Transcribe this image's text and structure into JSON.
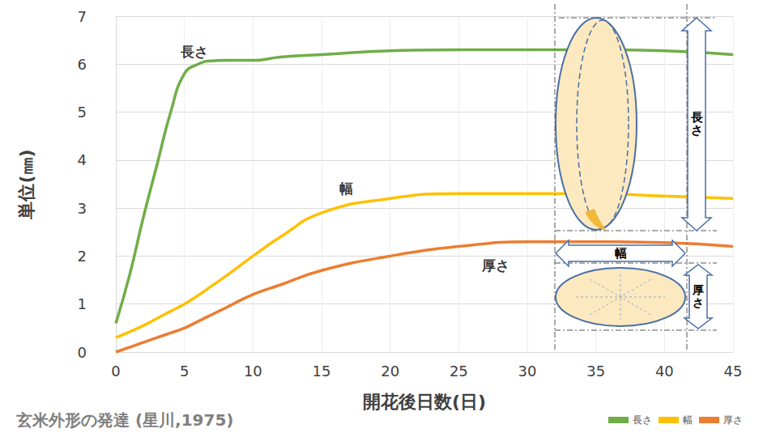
{
  "chart_data": {
    "type": "line",
    "title": "玄米外形の発達 (星川,1975)",
    "x_label": "開花後日数(日)",
    "y_label": "単位(㎜)",
    "x": [
      0,
      1,
      2,
      3,
      4,
      5,
      6,
      7,
      8,
      10,
      12,
      15,
      20,
      25,
      30,
      35,
      40,
      45
    ],
    "series": [
      {
        "name": "長さ",
        "color": "#70ad47",
        "values": [
          0.6,
          1.6,
          2.8,
          3.9,
          5.0,
          5.8,
          6.0,
          6.07,
          6.08,
          6.08,
          6.15,
          6.2,
          6.28,
          6.3,
          6.3,
          6.3,
          6.28,
          6.2
        ]
      },
      {
        "name": "幅",
        "color": "#ffc000",
        "values": [
          0.3,
          0.42,
          0.55,
          0.7,
          0.85,
          1.0,
          1.18,
          1.38,
          1.58,
          2.0,
          2.4,
          2.9,
          3.2,
          3.3,
          3.3,
          3.3,
          3.25,
          3.2
        ]
      },
      {
        "name": "厚さ",
        "color": "#ed7d31",
        "values": [
          0.0,
          0.1,
          0.2,
          0.3,
          0.4,
          0.5,
          0.64,
          0.78,
          0.92,
          1.2,
          1.4,
          1.7,
          2.0,
          2.2,
          2.3,
          2.3,
          2.28,
          2.2
        ]
      }
    ],
    "xlim": [
      0,
      45
    ],
    "xticks": [
      0,
      5,
      10,
      15,
      20,
      25,
      30,
      35,
      40,
      45
    ],
    "ylim": [
      0,
      7
    ],
    "yticks": [
      0,
      1,
      2,
      3,
      4,
      5,
      6,
      7
    ],
    "grid": true,
    "legend": "bottom right",
    "annotations": [
      {
        "text": "長さ",
        "x": 5.7,
        "y": 6.25
      },
      {
        "text": "幅",
        "x": 16.8,
        "y": 3.4
      },
      {
        "text": "厚さ",
        "x": 27.7,
        "y": 1.8
      }
    ],
    "inset_labels": {
      "length": "長さ",
      "width": "幅",
      "thickness": "厚さ"
    }
  }
}
